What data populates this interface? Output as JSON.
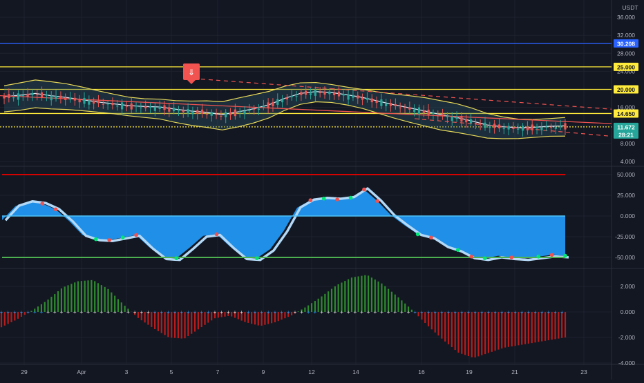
{
  "chart_data": [
    {
      "type": "candlestick",
      "currency": "USDT",
      "y_ticks": [
        "36.000",
        "32.000",
        "28.000",
        "24.000",
        "20.000",
        "16.000",
        "12.000",
        "8.000",
        "4.000"
      ],
      "x_ticks": [
        "29",
        "Apr",
        "3",
        "5",
        "7",
        "9",
        "12",
        "14",
        "16",
        "19",
        "21",
        "23"
      ],
      "price_labels": [
        {
          "text": "30.208",
          "value": 30.208,
          "bg": "#2962ff",
          "fg": "#ffffff"
        },
        {
          "text": "25.000",
          "value": 25.0,
          "bg": "#ffeb3b",
          "fg": "#131722"
        },
        {
          "text": "20.000",
          "value": 20.0,
          "bg": "#ffeb3b",
          "fg": "#131722"
        },
        {
          "text": "14.650",
          "value": 14.65,
          "bg": "#ffeb3b",
          "fg": "#131722"
        },
        {
          "text": "11.672",
          "value": 11.672,
          "bg": "#26a69a",
          "fg": "#ffffff"
        },
        {
          "text": "28:21",
          "value": null,
          "bg": "#26a69a",
          "fg": "#ffffff"
        }
      ],
      "horizontal_levels": [
        {
          "value": 30.208,
          "color": "#2962ff"
        },
        {
          "value": 25.0,
          "color": "#ffeb3b"
        },
        {
          "value": 20.0,
          "color": "#ffeb3b"
        },
        {
          "value": 14.65,
          "color": "#ffeb3b"
        },
        {
          "value": 11.672,
          "color": "#ffeb3b"
        }
      ],
      "candles_approx_close": [
        18.2,
        18.5,
        18.9,
        18.4,
        18.0,
        17.5,
        17.0,
        16.6,
        16.2,
        16.0,
        15.9,
        15.4,
        15.0,
        14.7,
        14.2,
        14.8,
        15.5,
        16.4,
        17.8,
        18.9,
        19.3,
        19.1,
        18.6,
        18.0,
        17.2,
        16.4,
        15.7,
        15.0,
        14.2,
        13.6,
        12.8,
        11.9,
        11.5,
        11.3,
        11.4,
        11.6,
        11.7
      ],
      "signal_marker": {
        "glyph": "⇓",
        "color": "#f05350"
      }
    },
    {
      "type": "area",
      "y_ticks": [
        "50.000",
        "25.000",
        "0.000",
        "-25.000",
        "-50.000"
      ],
      "upper_level": 50,
      "lower_level": -50,
      "series": [
        {
          "values": [
            -5,
            12,
            17,
            15,
            8,
            -6,
            -23,
            -28,
            -29,
            -26,
            -23,
            -38,
            -50,
            -51,
            -38,
            -24,
            -22,
            -37,
            -50,
            -51,
            -40,
            -18,
            10,
            19,
            21,
            20,
            22,
            32,
            18,
            1,
            -11,
            -22,
            -26,
            -36,
            -41,
            -49,
            -51,
            -48,
            -50,
            -51,
            -49,
            -47,
            -48
          ]
        }
      ]
    },
    {
      "type": "bar",
      "y_ticks": [
        "2.000",
        "0.000",
        "-2.000",
        "-4.000"
      ],
      "series": [
        {
          "values": [
            -1.2,
            -0.6,
            0.1,
            0.9,
            1.9,
            2.4,
            2.5,
            1.8,
            0.6,
            -0.5,
            -1.3,
            -2.0,
            -2.1,
            -1.3,
            -0.5,
            -0.3,
            -0.8,
            -1.1,
            -0.8,
            -0.3,
            0.4,
            1.2,
            2.1,
            2.7,
            2.9,
            2.2,
            1.2,
            0.1,
            -1.1,
            -2.2,
            -3.2,
            -3.6,
            -3.2,
            -2.8,
            -2.6,
            -2.4,
            -2.2,
            -2.0
          ]
        }
      ]
    }
  ]
}
